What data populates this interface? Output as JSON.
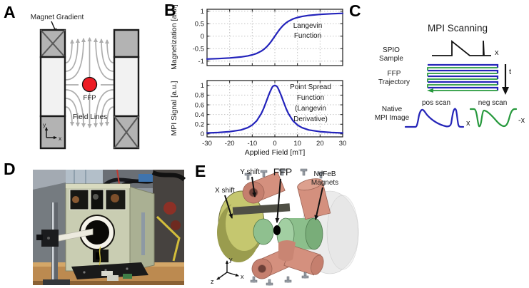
{
  "panel_a": {
    "letter": "A",
    "labels": {
      "magnet_gradient": "Magnet Gradient",
      "ffp": "FFP",
      "field_lines": "Field Lines",
      "axis_x": "x",
      "axis_y": "y"
    },
    "colors": {
      "ffp_red": "#ed1c24",
      "magnet_gray": "#b3b3b3",
      "pole_light": "#f2f2f2",
      "field_line_gray": "#adadad"
    }
  },
  "panel_b": {
    "letter": "B"
  },
  "chart_data": [
    {
      "type": "line",
      "title": "",
      "xlabel": "",
      "ylabel": "Magnetization [a.u.]",
      "xlim": [
        -30,
        30
      ],
      "ylim": [
        -1.18,
        1.08
      ],
      "xticks": [
        -30,
        -20,
        -10,
        0,
        10,
        20,
        30
      ],
      "xtick_labels": [
        "-30",
        "-20",
        "-10",
        "0",
        "10",
        "20",
        "30"
      ],
      "show_xtick_labels": false,
      "yticks": [
        -1,
        -0.5,
        0,
        0.5,
        1
      ],
      "ytick_labels": [
        "-1",
        "-0.5",
        "0",
        "0.5",
        "1"
      ],
      "grid": true,
      "annotation_lines": [
        "Langevin",
        "Function"
      ],
      "line_color": "#2323bb",
      "series": [
        {
          "name": "Langevin Function",
          "x": [
            -30,
            -25,
            -20,
            -15,
            -12,
            -10,
            -8,
            -6,
            -5,
            -4,
            -3.5,
            -3,
            -2.5,
            -2,
            -1.5,
            -1,
            -0.5,
            0,
            0.5,
            1,
            1.5,
            2,
            2.5,
            3,
            3.5,
            4,
            5,
            6,
            8,
            10,
            12,
            15,
            20,
            25,
            30
          ],
          "y": [
            -0.917,
            -0.9,
            -0.875,
            -0.833,
            -0.792,
            -0.751,
            -0.691,
            -0.6,
            -0.537,
            -0.46,
            -0.415,
            -0.366,
            -0.313,
            -0.256,
            -0.195,
            -0.132,
            -0.066,
            0,
            0.066,
            0.132,
            0.195,
            0.256,
            0.313,
            0.366,
            0.415,
            0.46,
            0.537,
            0.6,
            0.691,
            0.751,
            0.792,
            0.833,
            0.875,
            0.9,
            0.917
          ]
        }
      ]
    },
    {
      "type": "line",
      "title": "",
      "xlabel": "Applied Field [mT]",
      "ylabel": "MPI Signal [a.u.]",
      "xlim": [
        -30,
        30
      ],
      "ylim": [
        -0.06,
        1.1
      ],
      "xticks": [
        -30,
        -20,
        -10,
        0,
        10,
        20,
        30
      ],
      "xtick_labels": [
        "-30",
        "-20",
        "-10",
        "0",
        "10",
        "20",
        "30"
      ],
      "show_xtick_labels": true,
      "yticks": [
        0,
        0.2,
        0.4,
        0.6,
        0.8,
        1
      ],
      "ytick_labels": [
        "0",
        "0.2",
        "0.4",
        "0.6",
        "0.8",
        "1"
      ],
      "grid": true,
      "annotation_lines": [
        "Point Spread",
        "Function",
        "(Langevin",
        "Derivative)"
      ],
      "line_color": "#2323bb",
      "series": [
        {
          "name": "Point Spread Function",
          "x": [
            -30,
            -25,
            -20,
            -15,
            -12,
            -10,
            -8,
            -6,
            -5,
            -4,
            -3.5,
            -3,
            -2.5,
            -2,
            -1.5,
            -1,
            -0.5,
            0,
            0.5,
            1,
            1.5,
            2,
            2.5,
            3,
            3.5,
            4,
            5,
            6,
            8,
            10,
            12,
            15,
            20,
            25,
            30
          ],
          "y": [
            0.021,
            0.03,
            0.047,
            0.083,
            0.13,
            0.184,
            0.273,
            0.42,
            0.522,
            0.64,
            0.703,
            0.767,
            0.828,
            0.883,
            0.933,
            0.975,
            0.992,
            1.0,
            0.992,
            0.975,
            0.933,
            0.883,
            0.828,
            0.767,
            0.703,
            0.64,
            0.522,
            0.42,
            0.273,
            0.184,
            0.13,
            0.083,
            0.047,
            0.03,
            0.021
          ]
        }
      ]
    }
  ],
  "panel_c": {
    "letter": "C",
    "title": "MPI Scanning",
    "rows": [
      {
        "label_lines": [
          "SPIO",
          "Sample"
        ]
      },
      {
        "label_lines": [
          "FFP",
          "Trajectory"
        ]
      },
      {
        "label_lines": [
          "Native",
          "MPI Image"
        ]
      }
    ],
    "annotations": {
      "x_axis": "x",
      "neg_x_axis": "-x",
      "time": "t",
      "pos_scan": "pos scan",
      "neg_scan": "neg scan"
    },
    "colors": {
      "pos_blue": "#2525b8",
      "neg_green": "#27993d"
    }
  },
  "panel_d": {
    "letter": "D"
  },
  "panel_e": {
    "letter": "E",
    "labels": {
      "x_shift": "X shift",
      "y_shift": "Y shift",
      "ffp": "FFP",
      "magnets_line1": "NdFeB",
      "magnets_line2": "Magnets",
      "axis_x": "x",
      "axis_y": "y",
      "axis_z": "z"
    },
    "colors": {
      "x_shift_yellow": "#c5c76f",
      "y_shift_pink": "#d4907e",
      "magnet_green": "#8cbf8c",
      "housing_gray": "#d9d9d9"
    }
  }
}
